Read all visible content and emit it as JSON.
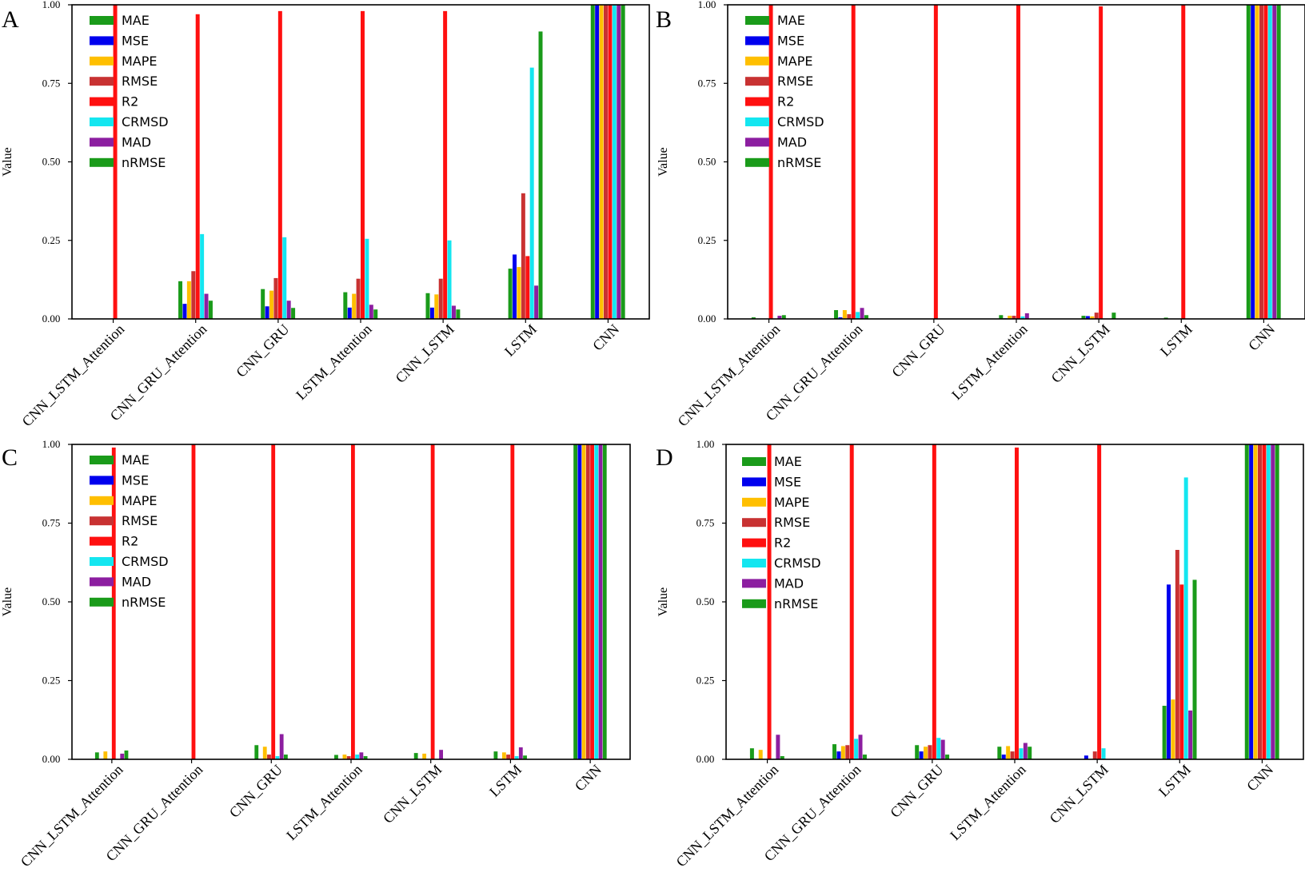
{
  "chart_data": [
    {
      "type": "bar",
      "panel_label": "A",
      "ylabel": "Value",
      "ylim": [
        0,
        1
      ],
      "yticks": [
        "0.00",
        "0.25",
        "0.50",
        "0.75",
        "1.00"
      ],
      "categories": [
        "CNN_LSTM_Attention",
        "CNN_GRU_Attention",
        "CNN_GRU",
        "LSTM_Attention",
        "CNN_LSTM",
        "LSTM",
        "CNN"
      ],
      "series": [
        {
          "name": "MAE",
          "color": "#1a9b1a",
          "values": [
            0.0,
            0.12,
            0.095,
            0.085,
            0.082,
            0.16,
            1.0
          ]
        },
        {
          "name": "MSE",
          "color": "#0000ee",
          "values": [
            0.0,
            0.048,
            0.04,
            0.036,
            0.036,
            0.205,
            1.0
          ]
        },
        {
          "name": "MAPE",
          "color": "#ffbf00",
          "values": [
            0.0,
            0.12,
            0.09,
            0.08,
            0.078,
            0.165,
            1.0
          ]
        },
        {
          "name": "RMSE",
          "color": "#c83232",
          "values": [
            0.0,
            0.152,
            0.13,
            0.128,
            0.128,
            0.4,
            1.0
          ]
        },
        {
          "name": "R2",
          "color": "#ff1010",
          "values": [
            1.0,
            0.97,
            0.98,
            0.98,
            0.98,
            0.2,
            1.0
          ]
        },
        {
          "name": "CRMSD",
          "color": "#14e6f0",
          "values": [
            0.0,
            0.27,
            0.26,
            0.255,
            0.25,
            0.8,
            1.0
          ]
        },
        {
          "name": "MAD",
          "color": "#8c1ea0",
          "values": [
            0.0,
            0.08,
            0.058,
            0.045,
            0.042,
            0.106,
            1.0
          ]
        },
        {
          "name": "nRMSE",
          "color": "#1a9b1a",
          "values": [
            0.0,
            0.058,
            0.035,
            0.03,
            0.03,
            0.915,
            1.0
          ]
        }
      ]
    },
    {
      "type": "bar",
      "panel_label": "B",
      "ylabel": "Value",
      "ylim": [
        0,
        1
      ],
      "yticks": [
        "0.00",
        "0.25",
        "0.50",
        "0.75",
        "1.00"
      ],
      "categories": [
        "CNN_LSTM_Attention",
        "CNN_GRU_Attention",
        "CNN_GRU",
        "LSTM_Attention",
        "CNN_LSTM",
        "LSTM",
        "CNN"
      ],
      "series": [
        {
          "name": "MAE",
          "color": "#1a9b1a",
          "values": [
            0.005,
            0.028,
            0.0,
            0.012,
            0.01,
            0.004,
            1.0
          ]
        },
        {
          "name": "MSE",
          "color": "#0000ee",
          "values": [
            0.0,
            0.005,
            0.0,
            0.002,
            0.009,
            0.0,
            1.0
          ]
        },
        {
          "name": "MAPE",
          "color": "#ffbf00",
          "values": [
            0.0,
            0.028,
            0.0,
            0.01,
            0.008,
            0.0,
            1.0
          ]
        },
        {
          "name": "RMSE",
          "color": "#c83232",
          "values": [
            0.0,
            0.015,
            0.0,
            0.01,
            0.02,
            0.0,
            1.0
          ]
        },
        {
          "name": "R2",
          "color": "#ff1010",
          "values": [
            1.0,
            1.0,
            1.0,
            1.0,
            0.995,
            1.0,
            1.0
          ]
        },
        {
          "name": "CRMSD",
          "color": "#14e6f0",
          "values": [
            0.0,
            0.022,
            0.0,
            0.008,
            0.0,
            0.0,
            1.0
          ]
        },
        {
          "name": "MAD",
          "color": "#8c1ea0",
          "values": [
            0.01,
            0.035,
            0.0,
            0.018,
            0.0,
            0.0,
            1.0
          ]
        },
        {
          "name": "nRMSE",
          "color": "#1a9b1a",
          "values": [
            0.012,
            0.012,
            0.0,
            0.0,
            0.02,
            0.0,
            1.0
          ]
        }
      ]
    },
    {
      "type": "bar",
      "panel_label": "C",
      "ylabel": "Value",
      "ylim": [
        0,
        1
      ],
      "yticks": [
        "0.00",
        "0.25",
        "0.50",
        "0.75",
        "1.00"
      ],
      "categories": [
        "CNN_LSTM_Attention",
        "CNN_GRU_Attention",
        "CNN_GRU",
        "LSTM_Attention",
        "CNN_LSTM",
        "LSTM",
        "CNN"
      ],
      "series": [
        {
          "name": "MAE",
          "color": "#1a9b1a",
          "values": [
            0.022,
            0.0,
            0.045,
            0.014,
            0.02,
            0.025,
            1.0
          ]
        },
        {
          "name": "MSE",
          "color": "#0000ee",
          "values": [
            0.0,
            0.0,
            0.0,
            0.0,
            0.0,
            0.0,
            1.0
          ]
        },
        {
          "name": "MAPE",
          "color": "#ffbf00",
          "values": [
            0.025,
            0.0,
            0.04,
            0.015,
            0.018,
            0.022,
            1.0
          ]
        },
        {
          "name": "RMSE",
          "color": "#c83232",
          "values": [
            0.0,
            0.0,
            0.015,
            0.01,
            0.0,
            0.015,
            1.0
          ]
        },
        {
          "name": "R2",
          "color": "#ff1010",
          "values": [
            0.99,
            1.0,
            1.0,
            1.0,
            1.0,
            1.0,
            1.0
          ]
        },
        {
          "name": "CRMSD",
          "color": "#14e6f0",
          "values": [
            0.0,
            0.0,
            0.01,
            0.015,
            0.0,
            0.01,
            1.0
          ]
        },
        {
          "name": "MAD",
          "color": "#8c1ea0",
          "values": [
            0.018,
            0.0,
            0.08,
            0.022,
            0.03,
            0.038,
            1.0
          ]
        },
        {
          "name": "nRMSE",
          "color": "#1a9b1a",
          "values": [
            0.028,
            0.0,
            0.015,
            0.01,
            0.0,
            0.012,
            1.0
          ]
        }
      ]
    },
    {
      "type": "bar",
      "panel_label": "D",
      "ylabel": "Value",
      "ylim": [
        0,
        1
      ],
      "yticks": [
        "0.00",
        "0.25",
        "0.50",
        "0.75",
        "1.00"
      ],
      "categories": [
        "CNN_LSTM_Attention",
        "CNN_GRU_Attention",
        "CNN_GRU",
        "LSTM_Attention",
        "CNN_LSTM",
        "LSTM",
        "CNN"
      ],
      "series": [
        {
          "name": "MAE",
          "color": "#1a9b1a",
          "values": [
            0.035,
            0.048,
            0.045,
            0.04,
            0.0,
            0.17,
            1.0
          ]
        },
        {
          "name": "MSE",
          "color": "#0000ee",
          "values": [
            0.0,
            0.025,
            0.025,
            0.015,
            0.012,
            0.555,
            1.0
          ]
        },
        {
          "name": "MAPE",
          "color": "#ffbf00",
          "values": [
            0.03,
            0.042,
            0.04,
            0.042,
            0.0,
            0.19,
            1.0
          ]
        },
        {
          "name": "RMSE",
          "color": "#c83232",
          "values": [
            0.0,
            0.045,
            0.045,
            0.025,
            0.025,
            0.665,
            1.0
          ]
        },
        {
          "name": "R2",
          "color": "#ff1010",
          "values": [
            1.0,
            1.0,
            1.0,
            0.99,
            1.0,
            0.555,
            1.0
          ]
        },
        {
          "name": "CRMSD",
          "color": "#14e6f0",
          "values": [
            0.0,
            0.065,
            0.068,
            0.035,
            0.035,
            0.895,
            1.0
          ]
        },
        {
          "name": "MAD",
          "color": "#8c1ea0",
          "values": [
            0.078,
            0.078,
            0.062,
            0.052,
            0.0,
            0.155,
            1.0
          ]
        },
        {
          "name": "nRMSE",
          "color": "#1a9b1a",
          "values": [
            0.01,
            0.015,
            0.015,
            0.04,
            0.0,
            0.57,
            1.0
          ]
        }
      ]
    }
  ]
}
